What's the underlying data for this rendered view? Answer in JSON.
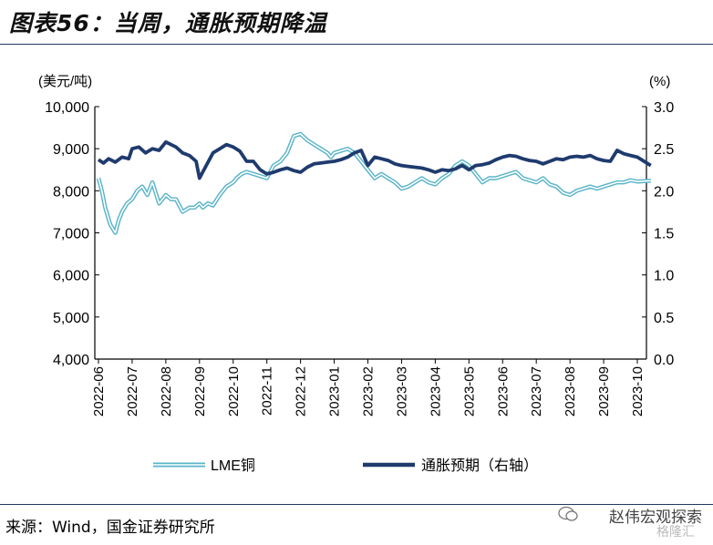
{
  "header": {
    "title": "图表56：当周，通胀预期降温"
  },
  "footer": {
    "source": "来源：Wind，国金证券研究所"
  },
  "watermark": {
    "name": "赵伟宏观探索",
    "sub": "格隆汇"
  },
  "colors": {
    "lme": "#5ab4c8",
    "infl": "#1f3b6e",
    "axis": "#000000",
    "rule": "#1f3864"
  },
  "chart_data": {
    "type": "line",
    "left_axis_unit": "(美元/吨)",
    "right_axis_unit": "(%)",
    "y_left": {
      "min": 4000,
      "max": 10000,
      "ticks": [
        "4,000",
        "5,000",
        "6,000",
        "7,000",
        "8,000",
        "9,000",
        "10,000"
      ]
    },
    "y_right": {
      "min": 0.0,
      "max": 3.0,
      "ticks": [
        "0.0",
        "0.5",
        "1.0",
        "1.5",
        "2.0",
        "2.5",
        "3.0"
      ]
    },
    "x_ticks": [
      "2022-06",
      "2022-07",
      "2022-08",
      "2022-09",
      "2022-10",
      "2022-11",
      "2022-12",
      "2023-01",
      "2023-02",
      "2023-03",
      "2023-04",
      "2023-05",
      "2023-06",
      "2023-07",
      "2023-08",
      "2023-09",
      "2023-10"
    ],
    "series": [
      {
        "name": "LME铜",
        "axis": "left",
        "style": "double",
        "x": [
          0,
          0.1,
          0.2,
          0.35,
          0.5,
          0.6,
          0.7,
          0.85,
          1.0,
          1.15,
          1.3,
          1.45,
          1.6,
          1.8,
          2.0,
          2.15,
          2.3,
          2.5,
          2.7,
          2.85,
          3.0,
          3.1,
          3.25,
          3.4,
          3.6,
          3.8,
          4.0,
          4.1,
          4.25,
          4.4,
          4.6,
          4.8,
          5.0,
          5.2,
          5.4,
          5.6,
          5.8,
          6.0,
          6.2,
          6.4,
          6.6,
          6.8,
          6.9,
          7.0,
          7.2,
          7.4,
          7.6,
          7.8,
          8.0,
          8.2,
          8.4,
          8.6,
          8.8,
          9.0,
          9.2,
          9.4,
          9.6,
          9.8,
          10.0,
          10.2,
          10.4,
          10.6,
          10.8,
          11.0,
          11.2,
          11.4,
          11.6,
          11.8,
          12.0,
          12.2,
          12.4,
          12.6,
          12.8,
          13.0,
          13.2,
          13.4,
          13.6,
          13.8,
          14.0,
          14.2,
          14.4,
          14.6,
          14.8,
          15.0,
          15.2,
          15.4,
          15.6,
          15.8,
          16.0,
          16.2,
          16.4
        ],
        "values": [
          8300,
          8000,
          7600,
          7200,
          7000,
          7300,
          7500,
          7700,
          7800,
          8000,
          8100,
          7900,
          8200,
          7700,
          7900,
          7800,
          7800,
          7500,
          7600,
          7600,
          7700,
          7600,
          7700,
          7650,
          7900,
          8100,
          8200,
          8300,
          8400,
          8450,
          8400,
          8350,
          8300,
          8600,
          8700,
          8900,
          9300,
          9350,
          9200,
          9100,
          9000,
          8900,
          8800,
          8900,
          8950,
          9000,
          8900,
          8700,
          8500,
          8300,
          8400,
          8300,
          8200,
          8050,
          8100,
          8200,
          8300,
          8200,
          8150,
          8300,
          8400,
          8600,
          8700,
          8600,
          8400,
          8200,
          8300,
          8300,
          8350,
          8400,
          8450,
          8300,
          8250,
          8200,
          8300,
          8150,
          8100,
          7950,
          7900,
          8000,
          8050,
          8100,
          8050,
          8100,
          8150,
          8200,
          8200,
          8250,
          8220,
          8230,
          8240
        ]
      },
      {
        "name": "通胀预期（右轴）",
        "axis": "right",
        "style": "solid",
        "x": [
          0,
          0.15,
          0.3,
          0.5,
          0.7,
          0.9,
          1.0,
          1.2,
          1.4,
          1.6,
          1.8,
          2.0,
          2.15,
          2.3,
          2.5,
          2.7,
          2.9,
          3.0,
          3.2,
          3.4,
          3.6,
          3.8,
          4.0,
          4.2,
          4.4,
          4.6,
          4.8,
          5.0,
          5.2,
          5.4,
          5.6,
          5.8,
          6.0,
          6.2,
          6.4,
          6.6,
          6.8,
          7.0,
          7.2,
          7.4,
          7.6,
          7.8,
          8.0,
          8.2,
          8.4,
          8.6,
          8.8,
          9.0,
          9.2,
          9.4,
          9.6,
          9.8,
          10.0,
          10.2,
          10.4,
          10.6,
          10.8,
          11.0,
          11.2,
          11.4,
          11.6,
          11.8,
          12.0,
          12.2,
          12.4,
          12.6,
          12.8,
          13.0,
          13.2,
          13.4,
          13.6,
          13.8,
          14.0,
          14.2,
          14.4,
          14.6,
          14.8,
          15.0,
          15.2,
          15.4,
          15.6,
          15.8,
          16.0,
          16.2,
          16.4
        ],
        "values": [
          2.37,
          2.33,
          2.38,
          2.34,
          2.4,
          2.38,
          2.5,
          2.52,
          2.45,
          2.5,
          2.48,
          2.58,
          2.55,
          2.52,
          2.45,
          2.42,
          2.35,
          2.15,
          2.3,
          2.45,
          2.5,
          2.55,
          2.52,
          2.47,
          2.35,
          2.35,
          2.25,
          2.2,
          2.22,
          2.25,
          2.27,
          2.24,
          2.22,
          2.28,
          2.32,
          2.33,
          2.34,
          2.35,
          2.37,
          2.4,
          2.45,
          2.48,
          2.3,
          2.4,
          2.38,
          2.36,
          2.32,
          2.3,
          2.29,
          2.28,
          2.27,
          2.25,
          2.22,
          2.25,
          2.24,
          2.26,
          2.3,
          2.25,
          2.3,
          2.31,
          2.33,
          2.37,
          2.4,
          2.42,
          2.41,
          2.38,
          2.36,
          2.35,
          2.32,
          2.35,
          2.38,
          2.37,
          2.4,
          2.41,
          2.4,
          2.42,
          2.38,
          2.36,
          2.35,
          2.48,
          2.44,
          2.42,
          2.4,
          2.35,
          2.3
        ]
      }
    ],
    "legend": {
      "placement": "bottom",
      "labels": [
        "LME铜",
        "通胀预期（右轴）"
      ]
    }
  }
}
